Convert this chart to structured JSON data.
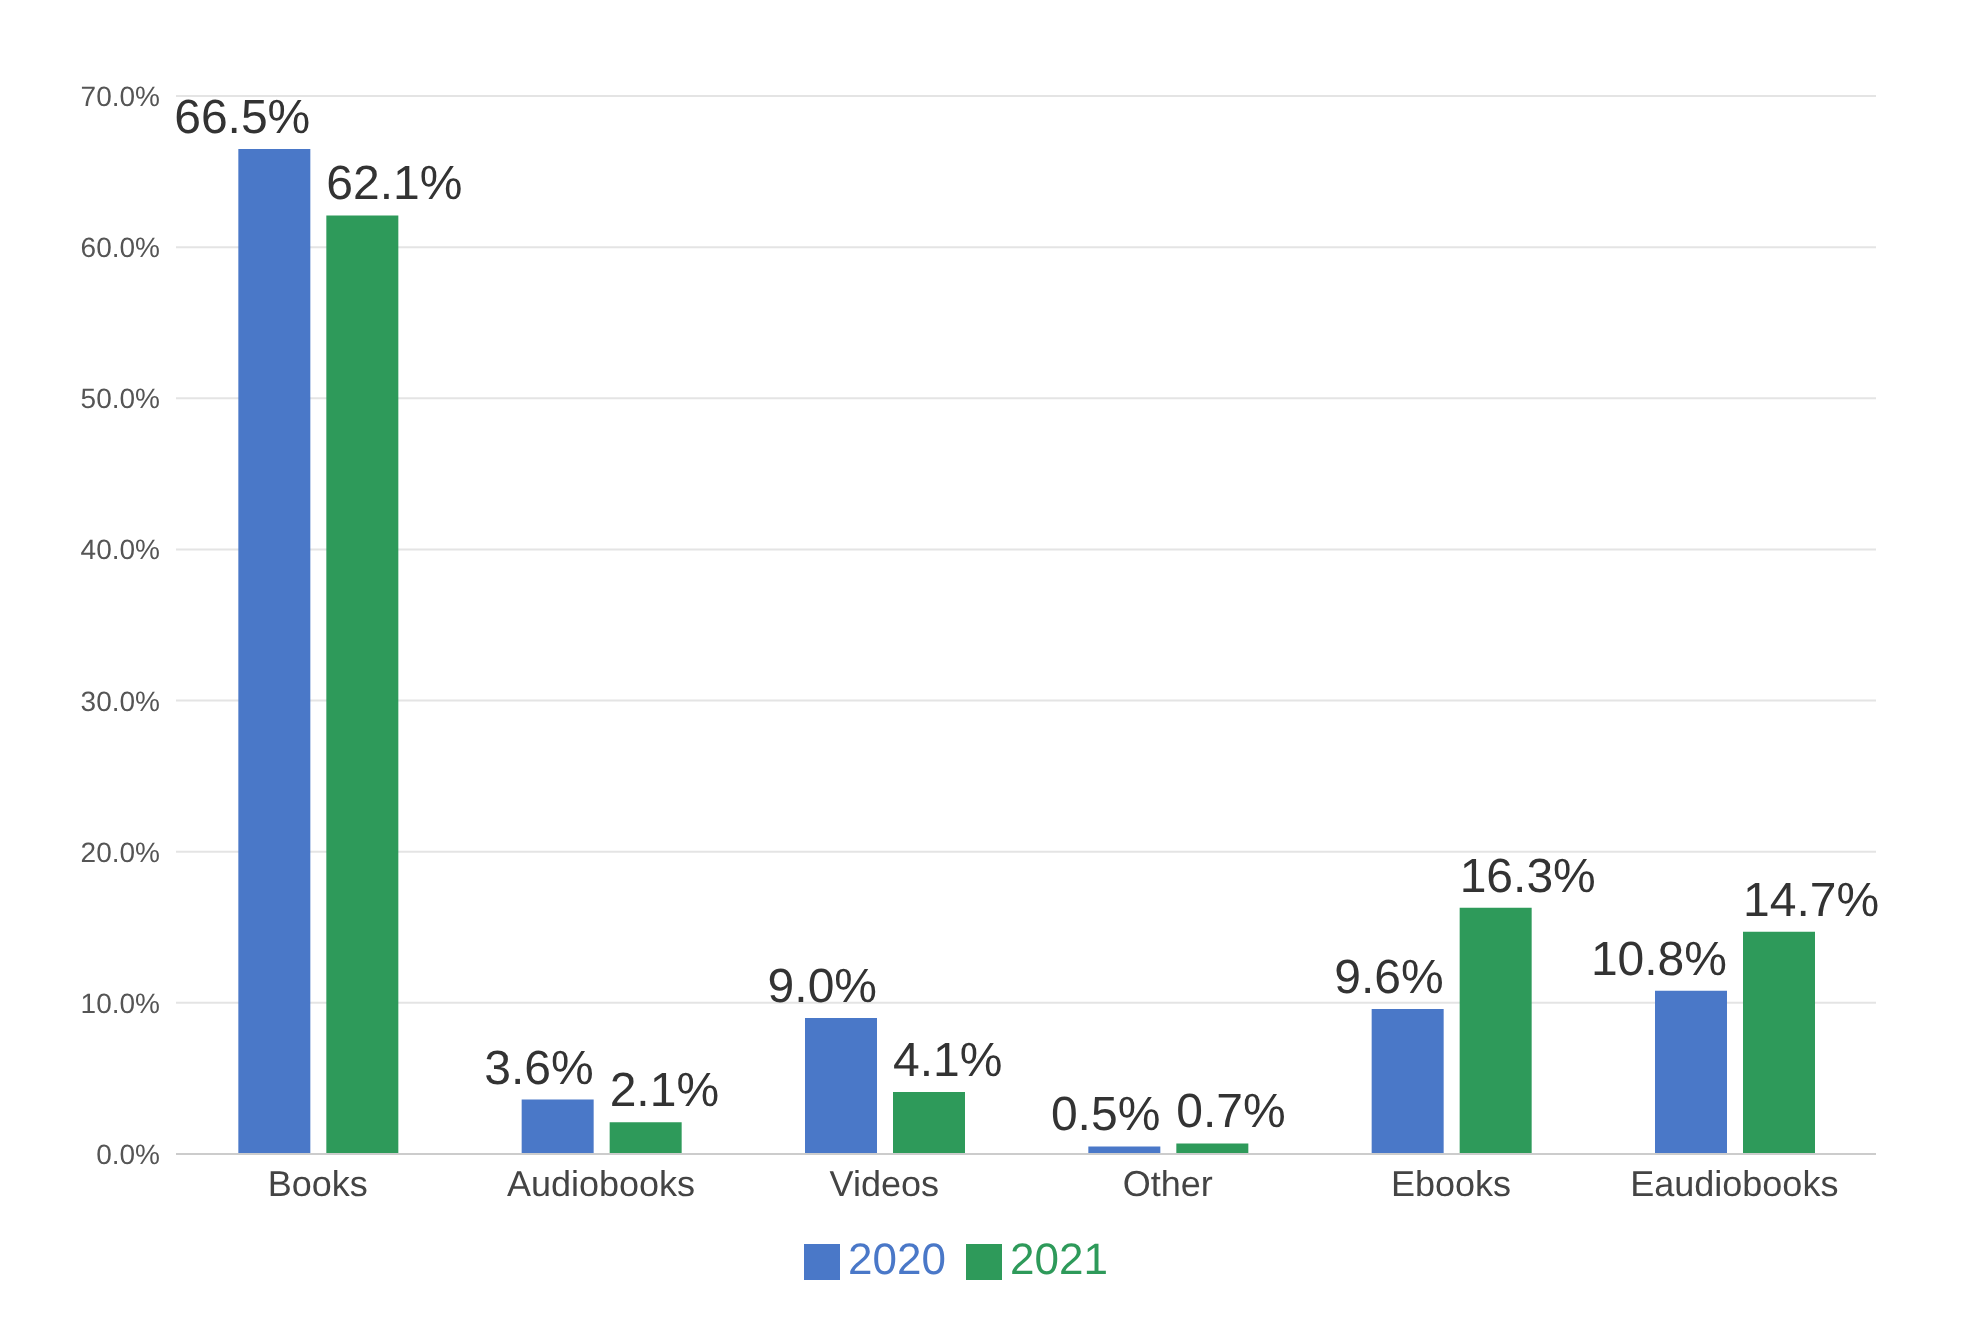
{
  "chart_data": {
    "type": "bar",
    "categories": [
      "Books",
      "Audiobooks",
      "Videos",
      "Other",
      "Ebooks",
      "Eaudiobooks"
    ],
    "series": [
      {
        "name": "2020",
        "color": "#4a78c8",
        "values": [
          66.5,
          3.6,
          9.0,
          0.5,
          9.6,
          10.8
        ],
        "value_labels": [
          "66.5%",
          "3.6%",
          "9.0%",
          "0.5%",
          "9.6%",
          "10.8%"
        ]
      },
      {
        "name": "2021",
        "color": "#2e9a5a",
        "values": [
          62.1,
          2.1,
          4.1,
          0.7,
          16.3,
          14.7
        ],
        "value_labels": [
          "62.1%",
          "2.1%",
          "4.1%",
          "0.7%",
          "16.3%",
          "14.7%"
        ]
      }
    ],
    "ylim": [
      0,
      70
    ],
    "yticks": [
      {
        "value": 0,
        "label": "0.0%"
      },
      {
        "value": 10,
        "label": "10.0%"
      },
      {
        "value": 20,
        "label": "20.0%"
      },
      {
        "value": 30,
        "label": "30.0%"
      },
      {
        "value": 40,
        "label": "40.0%"
      },
      {
        "value": 50,
        "label": "50.0%"
      },
      {
        "value": 60,
        "label": "60.0%"
      },
      {
        "value": 70,
        "label": "70.0%"
      }
    ],
    "grid": "y",
    "legend": "bottom"
  }
}
